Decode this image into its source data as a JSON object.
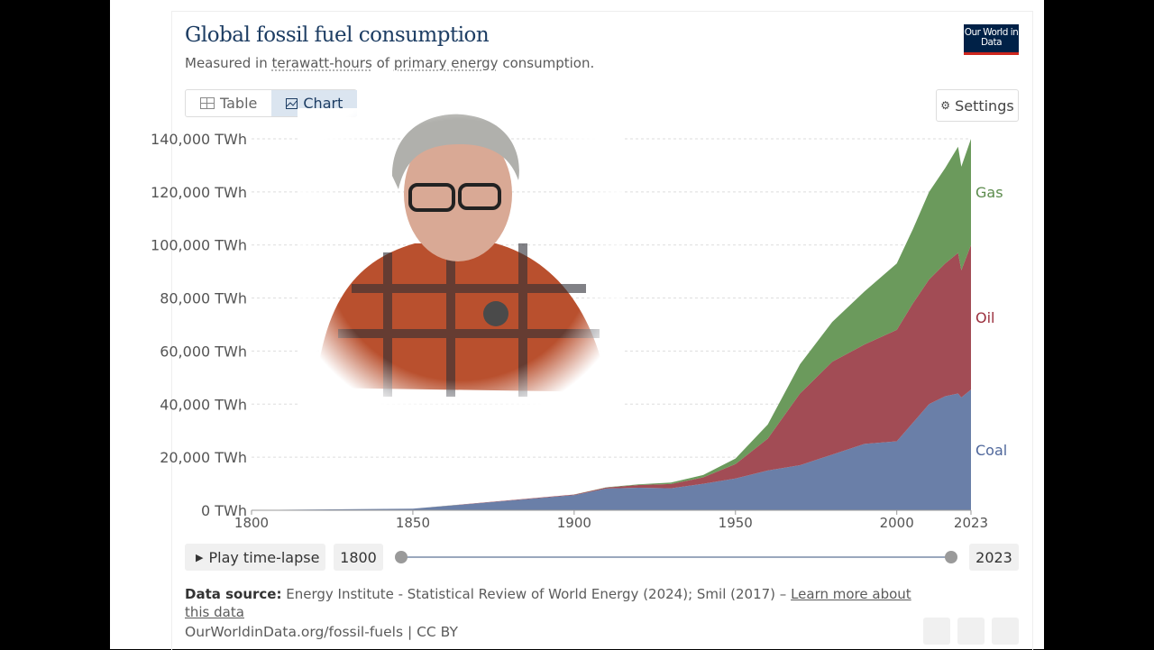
{
  "chart_data": {
    "type": "stacked-area",
    "title": "Global fossil fuel consumption",
    "subtitle_parts": [
      "Measured in",
      "terawatt-hours",
      "of",
      "primary energy",
      "consumption."
    ],
    "x": [
      1800,
      1850,
      1900,
      1910,
      1920,
      1930,
      1940,
      1950,
      1960,
      1970,
      1980,
      1990,
      2000,
      2005,
      2010,
      2015,
      2019,
      2020,
      2023
    ],
    "series": [
      {
        "name": "Coal",
        "color": "#6a7fa8",
        "label_color": "#4f679b",
        "values": [
          97,
          570,
          5700,
          8200,
          8500,
          8300,
          10000,
          12000,
          15000,
          17000,
          21000,
          25000,
          26000,
          33000,
          40000,
          43000,
          44000,
          42500,
          45500
        ]
      },
      {
        "name": "Oil",
        "color": "#a24c55",
        "label_color": "#9b2f3d",
        "values": [
          0,
          0,
          200,
          350,
          1000,
          1600,
          2400,
          5400,
          12000,
          27000,
          35000,
          37500,
          42000,
          45000,
          47000,
          50000,
          53000,
          48000,
          54500
        ]
      },
      {
        "name": "Gas",
        "color": "#6b9a5c",
        "label_color": "#5b8b4c",
        "values": [
          0,
          0,
          60,
          130,
          250,
          560,
          880,
          2100,
          5300,
          11000,
          15000,
          20000,
          25000,
          28000,
          33000,
          36000,
          40000,
          39000,
          40000
        ]
      }
    ],
    "xlim": [
      1800,
      2023
    ],
    "xticks": [
      1800,
      1850,
      1900,
      1950,
      2000,
      2023
    ],
    "ylim": [
      0,
      140000
    ],
    "yticks": [
      {
        "value": 0,
        "label": "0 TWh"
      },
      {
        "value": 20000,
        "label": "20,000 TWh"
      },
      {
        "value": 40000,
        "label": "40,000 TWh"
      },
      {
        "value": 60000,
        "label": "60,000 TWh"
      },
      {
        "value": 80000,
        "label": "80,000 TWh"
      },
      {
        "value": 100000,
        "label": "100,000 TWh"
      },
      {
        "value": 120000,
        "label": "120,000 TWh"
      },
      {
        "value": 140000,
        "label": "140,000 TWh"
      }
    ],
    "grid": true
  },
  "ui": {
    "logo": "Our World in Data",
    "tabs": [
      "Table",
      "Chart"
    ],
    "settings": "Settings",
    "play": "Play time-lapse",
    "timeline": {
      "start": "1800",
      "end": "2023"
    },
    "source_label": "Data source:",
    "source_text": "Energy Institute - Statistical Review of World Energy (2024); Smil (2017) –",
    "source_link": "Learn more about this data",
    "footer": "OurWorldinData.org/fossil-fuels | CC BY"
  }
}
